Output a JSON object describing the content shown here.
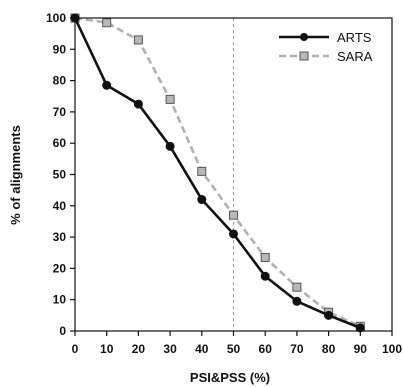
{
  "chart_data": {
    "type": "line",
    "title": "",
    "xlabel": "PSI&PSS (%)",
    "ylabel": "% of alignments",
    "xlim": [
      0,
      100
    ],
    "ylim": [
      0,
      100
    ],
    "x_ticks": [
      0,
      10,
      20,
      30,
      40,
      50,
      60,
      70,
      80,
      90,
      100
    ],
    "y_ticks": [
      0,
      10,
      20,
      30,
      40,
      50,
      60,
      70,
      80,
      90,
      100
    ],
    "grid": false,
    "legend_position": "top-right",
    "reference_line": {
      "x": 50,
      "style": "dashed"
    },
    "series": [
      {
        "name": "ARTS",
        "color": "#111111",
        "line_style": "solid",
        "marker": "circle",
        "x": [
          0,
          10,
          20,
          30,
          40,
          50,
          60,
          70,
          80,
          90
        ],
        "values": [
          100,
          78.5,
          72.5,
          59,
          42,
          31,
          17.5,
          9.5,
          5,
          1
        ]
      },
      {
        "name": "SARA",
        "color": "#b0b0b0",
        "line_style": "dashed",
        "marker": "square",
        "x": [
          0,
          10,
          20,
          30,
          40,
          50,
          60,
          70,
          80,
          90
        ],
        "values": [
          100,
          98.5,
          93,
          74,
          51,
          37,
          23.5,
          14,
          6,
          1.5
        ]
      }
    ]
  }
}
